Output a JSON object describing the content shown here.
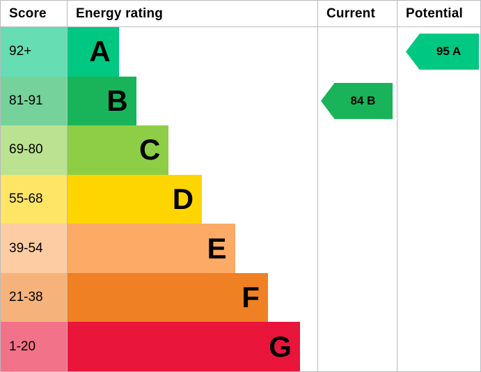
{
  "header": {
    "score": "Score",
    "energy_rating": "Energy rating",
    "current": "Current",
    "potential": "Potential"
  },
  "bands": [
    {
      "range": "92+",
      "letter": "A",
      "color": "#00c781",
      "tint": "#66ddb3",
      "width_pct": 20.5
    },
    {
      "range": "81-91",
      "letter": "B",
      "color": "#19b459",
      "tint": "#75d29b",
      "width_pct": 27.5
    },
    {
      "range": "69-80",
      "letter": "C",
      "color": "#8dce46",
      "tint": "#bbe290",
      "width_pct": 40.5
    },
    {
      "range": "55-68",
      "letter": "D",
      "color": "#ffd500",
      "tint": "#ffe566",
      "width_pct": 53.8
    },
    {
      "range": "39-54",
      "letter": "E",
      "color": "#fcaa65",
      "tint": "#fdcca3",
      "width_pct": 67.0
    },
    {
      "range": "21-38",
      "letter": "F",
      "color": "#ef8023",
      "tint": "#f5b37b",
      "width_pct": 80.2
    },
    {
      "range": "1-20",
      "letter": "G",
      "color": "#e9153b",
      "tint": "#f27389",
      "width_pct": 93.0
    }
  ],
  "current": {
    "label": "84 B",
    "value": 84,
    "band": "B",
    "band_index": 1,
    "color": "#19b459"
  },
  "potential": {
    "label": "95 A",
    "value": 95,
    "band": "A",
    "band_index": 0,
    "color": "#00c781"
  },
  "chart_data": {
    "type": "bar",
    "title": "Energy rating",
    "categories": [
      "A",
      "B",
      "C",
      "D",
      "E",
      "F",
      "G"
    ],
    "score_ranges": [
      "92+",
      "81-91",
      "69-80",
      "55-68",
      "39-54",
      "21-38",
      "1-20"
    ],
    "band_colors": [
      "#00c781",
      "#19b459",
      "#8dce46",
      "#ffd500",
      "#fcaa65",
      "#ef8023",
      "#e9153b"
    ],
    "current": {
      "value": 84,
      "band": "B"
    },
    "potential": {
      "value": 95,
      "band": "A"
    },
    "legend_position": "none",
    "grid": "column-separators-only"
  }
}
